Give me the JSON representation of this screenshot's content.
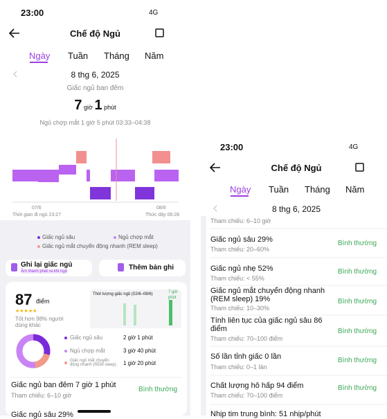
{
  "left": {
    "status": {
      "time": "23:00",
      "network": "4G"
    },
    "header": {
      "title": "Chế độ Ngủ"
    },
    "tabs": [
      "Ngày",
      "Tuần",
      "Tháng",
      "Năm"
    ],
    "date": "8 thg 6, 2025",
    "subtitle": "Giấc ngủ ban đêm",
    "duration": {
      "hours": "7",
      "hours_unit": "giờ",
      "minutes": "1",
      "minutes_unit": "phút"
    },
    "nap": "Ngủ chợp mắt 1 giờ 5 phút 03:33–04:38",
    "chart_labels": {
      "start_date": "07/6",
      "start": "Thời gian đi ngủ 23:27",
      "end_date": "08/6",
      "end": "Thức dậy 06:28"
    },
    "legend": [
      "Giấc ngủ sâu",
      "Ngủ chợp mắt",
      "Giấc ngủ mắt chuyển động nhanh (REM sleep)"
    ],
    "buttons": {
      "record": "Ghi lại giấc ngủ",
      "record_sub": "Âm thanh phát ra khi ngủ",
      "add": "Thêm bản ghi"
    },
    "score": {
      "value": "87",
      "unit": "điểm",
      "note": "Tốt hơn 98% người dùng khác"
    },
    "mini_chart": {
      "title": "Thời lượng giấc ngủ (02/6–08/6)",
      "label_hours": "7 giờ",
      "label_minutes": "phút"
    },
    "breakdown": [
      {
        "name": "Giấc ngủ sâu",
        "value": "2 giờ 1 phút"
      },
      {
        "name": "Ngủ chợp mắt",
        "value": "3 giờ 40 phút"
      },
      {
        "name": "Giấc ngủ mắt chuyển động nhanh (REM sleep)",
        "value": "1 giờ 20 phút"
      }
    ],
    "summary": {
      "title": "Giấc ngủ ban đêm 7 giờ 1 phút",
      "status": "Bình thường",
      "ref": "Tham chiếu: 6–10 giờ"
    },
    "cutoff": "Giấc ngủ sâu 29%"
  },
  "right": {
    "status": {
      "time": "23:00",
      "network": "4G"
    },
    "header": {
      "title": "Chế độ Ngủ"
    },
    "tabs": [
      "Ngày",
      "Tuần",
      "Tháng",
      "Năm"
    ],
    "date": "8 thg 6, 2025",
    "first_ref": "Tham chiếu: 6–10 giờ",
    "rows": [
      {
        "title": "Giấc ngủ sâu 29%",
        "ref": "Tham chiếu: 20–60%",
        "status": "Bình thường"
      },
      {
        "title": "Giấc ngủ nhẹ 52%",
        "ref": "Tham chiếu: < 55%",
        "status": "Bình thường"
      },
      {
        "title": "Giấc ngủ mắt chuyển động nhanh (REM sleep) 19%",
        "ref": "Tham chiếu: 10–30%",
        "status": "Bình thường"
      },
      {
        "title": "Tính liên tục của giấc ngủ sâu 86 điểm",
        "ref": "Tham chiếu: 70–100 điểm",
        "status": "Bình thường"
      },
      {
        "title": "Số lần tỉnh giấc 0 lần",
        "ref": "Tham chiếu: 0–1 lần",
        "status": "Bình thường"
      },
      {
        "title": "Chất lượng hô hấp 94 điểm",
        "ref": "Tham chiếu: 70–100 điểm",
        "status": "Bình thường"
      }
    ],
    "cutoff": "Nhịp tim trung bình: 51 nhịp/phút"
  }
}
